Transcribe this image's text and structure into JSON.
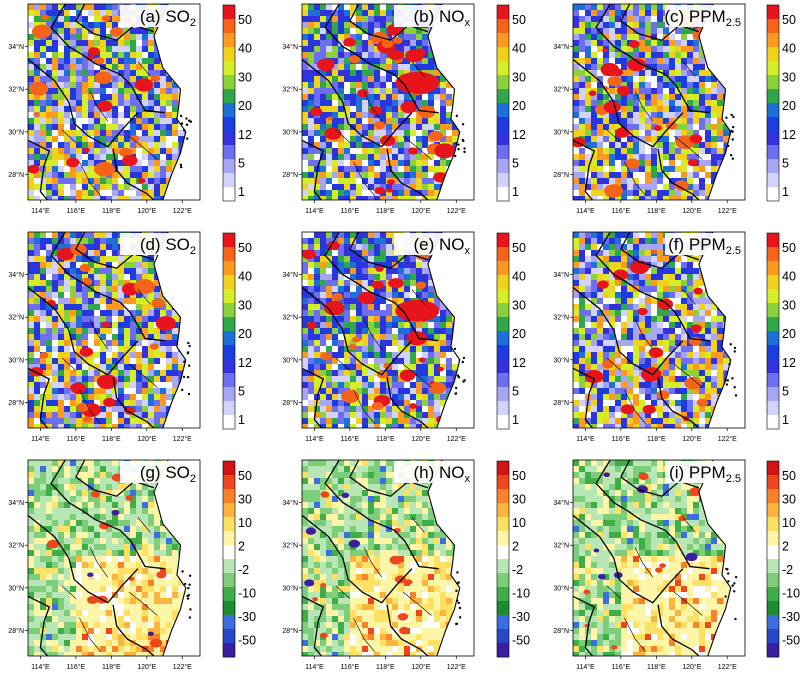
{
  "figure": {
    "panels": [
      {
        "label": "(a)",
        "species": "SO",
        "sub": "2",
        "scale": "abs",
        "density": 0.55,
        "seed": 11
      },
      {
        "label": "(b)",
        "species": "NO",
        "sub": "x",
        "scale": "abs",
        "density": 0.85,
        "seed": 23
      },
      {
        "label": "(c)",
        "species": "PPM",
        "sub": "2.5",
        "scale": "abs",
        "density": 0.6,
        "seed": 37
      },
      {
        "label": "(d)",
        "species": "SO",
        "sub": "2",
        "scale": "abs",
        "density": 0.5,
        "seed": 41
      },
      {
        "label": "(e)",
        "species": "NO",
        "sub": "x",
        "scale": "abs",
        "density": 0.8,
        "seed": 53
      },
      {
        "label": "(f)",
        "species": "PPM",
        "sub": "2.5",
        "scale": "abs",
        "density": 0.5,
        "seed": 67
      },
      {
        "label": "(g)",
        "species": "SO",
        "sub": "2",
        "scale": "diff",
        "density": 0.6,
        "seed": 71
      },
      {
        "label": "(h)",
        "species": "NO",
        "sub": "x",
        "scale": "diff",
        "density": 0.6,
        "seed": 83
      },
      {
        "label": "(i)",
        "species": "PPM",
        "sub": "2.5",
        "scale": "diff",
        "density": 0.6,
        "seed": 97
      }
    ],
    "lon_ticks": [
      "114°E",
      "116°E",
      "118°E",
      "120°E",
      "122°E"
    ],
    "lat_ticks": [
      "34°N",
      "32°N",
      "30°N",
      "28°N"
    ],
    "colorbars": {
      "abs": {
        "labels": [
          "50",
          "40",
          "30",
          "20",
          "12",
          "5",
          "1"
        ],
        "colors": [
          "#e8141c",
          "#f56418",
          "#fb9a1e",
          "#f0d21c",
          "#d5ee2a",
          "#8cd03c",
          "#2fa84c",
          "#1f6fd8",
          "#1c3ce0",
          "#3232dc",
          "#6e6ef0",
          "#a6a6f5",
          "#d2d2fa",
          "#ffffff"
        ]
      },
      "diff": {
        "labels": [
          "50",
          "30",
          "10",
          "2",
          "-2",
          "-10",
          "-30",
          "-50"
        ],
        "colors": [
          "#d21414",
          "#f0461e",
          "#fa8228",
          "#fbb43c",
          "#fce164",
          "#fdf6a8",
          "#ffffff",
          "#b8e6b4",
          "#7dce7a",
          "#3fae48",
          "#1e8c32",
          "#3c6ee0",
          "#2846c8",
          "#3c1ea0"
        ]
      }
    }
  }
}
